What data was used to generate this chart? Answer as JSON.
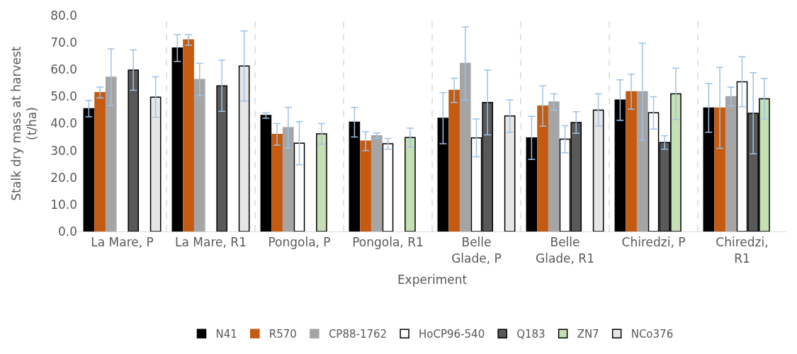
{
  "chart_data": {
    "type": "bar",
    "xlabel": "Experiment",
    "ylabel": "Stalk dry mass at harvest (t/ha)",
    "categories": [
      "La Mare, P",
      "La Mare, R1",
      "Pongola, P",
      "Pongola, R1",
      "Belle Glade, P",
      "Belle Glade, R1",
      "Chiredzi, P",
      "Chiredzi, R1"
    ],
    "series": [
      {
        "name": "N41",
        "color": "#000000",
        "values": [
          45.5,
          68,
          43,
          40.5,
          42,
          34.7,
          48.7,
          45.8
        ],
        "errors": [
          3,
          5,
          1,
          5.5,
          9.5,
          8,
          7.5,
          9
        ]
      },
      {
        "name": "R570",
        "color": "#c55a11",
        "values": [
          51.5,
          71,
          36,
          33.5,
          52.3,
          46.5,
          51.8,
          45.8
        ],
        "errors": [
          2,
          2,
          4,
          3.5,
          4.5,
          7.5,
          6.5,
          15
        ]
      },
      {
        "name": "CP88-1762",
        "color": "#a5a5a5",
        "values": [
          57.2,
          56.3,
          38.5,
          35.5,
          62.3,
          48,
          51.8,
          50
        ],
        "errors": [
          10.5,
          6,
          7.5,
          1,
          13.5,
          3,
          18,
          3.5
        ]
      },
      {
        "name": "HoCP96-540",
        "color": "#ffffff",
        "values": [
          null,
          null,
          32.7,
          32.5,
          34.7,
          34.2,
          44,
          55.5
        ],
        "errors": [
          null,
          null,
          8,
          2,
          7,
          5,
          6,
          9.3
        ]
      },
      {
        "name": "Q183",
        "color": "#595959",
        "values": [
          59.8,
          54,
          null,
          null,
          47.8,
          40.4,
          33,
          43.8
        ],
        "errors": [
          7.5,
          9.5,
          null,
          null,
          12,
          4,
          2.5,
          15
        ]
      },
      {
        "name": "ZN7",
        "color": "#c5e0b4",
        "values": [
          null,
          null,
          36.2,
          34.8,
          null,
          null,
          51,
          49.2
        ],
        "errors": [
          null,
          null,
          3.8,
          3.5,
          null,
          null,
          9.5,
          7.5
        ]
      },
      {
        "name": "NCo376",
        "color": "#e7e6e6",
        "values": [
          49.8,
          61.3,
          null,
          null,
          42.8,
          45,
          null,
          null
        ],
        "errors": [
          7.5,
          13,
          null,
          null,
          6,
          6,
          null,
          null
        ]
      }
    ],
    "ylim": [
      0,
      80
    ],
    "yticks": [
      {
        "value": 0,
        "label": "0.0"
      },
      {
        "value": 10,
        "label": "10.0"
      },
      {
        "value": 20,
        "label": "20.0"
      },
      {
        "value": 30,
        "label": "30.0"
      },
      {
        "value": 40,
        "label": "40.0"
      },
      {
        "value": 50,
        "label": "50.0"
      },
      {
        "value": 60,
        "label": "60.0"
      },
      {
        "value": 70,
        "label": "70.0"
      },
      {
        "value": 80,
        "label": "80.0"
      }
    ],
    "grid": "x",
    "legend": "bottom"
  }
}
